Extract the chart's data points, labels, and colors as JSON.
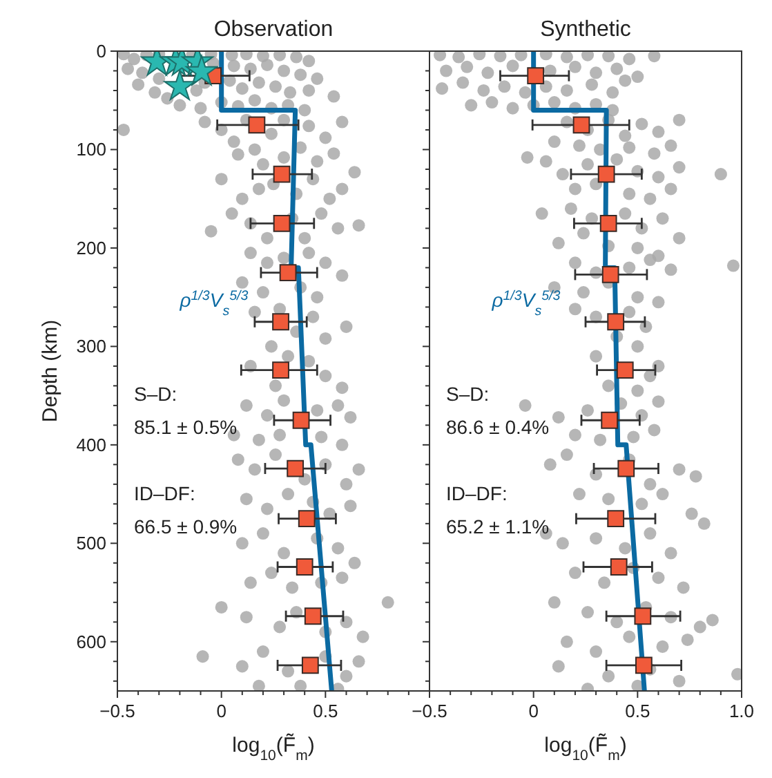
{
  "chart_data": [
    {
      "type": "scatter",
      "title": "Observation",
      "xlabel": "log$_{10}$(F̃$_{m}$)",
      "ylabel": "Depth (km)",
      "xlim": [
        -0.5,
        1.0
      ],
      "ylim": [
        650,
        0
      ],
      "xticks": [
        -0.5,
        {
          "value": -0.4,
          "label": null
        },
        {
          "value": -0.3,
          "label": null
        },
        {
          "value": -0.2,
          "label": null
        },
        {
          "value": -0.1,
          "label": null
        },
        0,
        {
          "value": 0.1,
          "label": null
        },
        {
          "value": 0.2,
          "label": null
        },
        {
          "value": 0.3,
          "label": null
        },
        {
          "value": 0.4,
          "label": null
        },
        0.5,
        {
          "value": 0.6,
          "label": null
        },
        {
          "value": 0.7,
          "label": null
        },
        {
          "value": 0.8,
          "label": null
        },
        {
          "value": 0.9,
          "label": null
        },
        {
          "value": 1.0,
          "label": null
        }
      ],
      "yticks": [
        0,
        {
          "value": 20,
          "label": null
        },
        {
          "value": 40,
          "label": null
        },
        {
          "value": 60,
          "label": null
        },
        {
          "value": 80,
          "label": null
        },
        100,
        {
          "value": 120,
          "label": null
        },
        {
          "value": 140,
          "label": null
        },
        {
          "value": 160,
          "label": null
        },
        {
          "value": 180,
          "label": null
        },
        200,
        {
          "value": 220,
          "label": null
        },
        {
          "value": 240,
          "label": null
        },
        {
          "value": 260,
          "label": null
        },
        {
          "value": 280,
          "label": null
        },
        300,
        {
          "value": 320,
          "label": null
        },
        {
          "value": 340,
          "label": null
        },
        {
          "value": 360,
          "label": null
        },
        {
          "value": 380,
          "label": null
        },
        400,
        {
          "value": 420,
          "label": null
        },
        {
          "value": 440,
          "label": null
        },
        {
          "value": 460,
          "label": null
        },
        {
          "value": 480,
          "label": null
        },
        500,
        {
          "value": 520,
          "label": null
        },
        {
          "value": 540,
          "label": null
        },
        {
          "value": 560,
          "label": null
        },
        {
          "value": 580,
          "label": null
        },
        600,
        {
          "value": 620,
          "label": null
        },
        {
          "value": 640,
          "label": null
        }
      ],
      "annotations": [
        "ρ$^{1/3}$V$_{s}$$^{5/3}$",
        "S–D:\n85.1 ± 0.5%",
        "ID–DF:\n66.5 ± 0.9%"
      ],
      "series": [
        {
          "marker": "circle",
          "color": "#a9a9a9",
          "x": [
            -0.47,
            -0.42,
            -0.36,
            -0.3,
            -0.14,
            -0.05,
            0.05,
            0.12,
            0.2,
            0.28,
            0.36,
            0.42,
            -0.45,
            -0.38,
            -0.3,
            -0.04,
            0.06,
            0.14,
            0.22,
            0.3,
            0.38,
            0.46,
            -0.4,
            -0.32,
            -0.26,
            -0.12,
            -0.08,
            0.04,
            0.1,
            0.18,
            0.26,
            0.33,
            0.42,
            0.54,
            -0.2,
            -0.1,
            0.0,
            0.08,
            0.16,
            0.24,
            0.32,
            0.4,
            -0.47,
            -0.08,
            0.0,
            0.06,
            0.12,
            0.24,
            0.3,
            0.42,
            0.5,
            0.58,
            0.08,
            0.16,
            0.2,
            0.3,
            0.38,
            0.46,
            0.54,
            0.64,
            0.0,
            0.1,
            0.18,
            0.25,
            0.36,
            0.44,
            0.52,
            0.58,
            -0.05,
            0.05,
            0.14,
            0.22,
            0.34,
            0.4,
            0.48,
            0.56,
            0.66,
            0.14,
            0.22,
            0.3,
            0.42,
            0.5,
            0.58,
            0.1,
            0.2,
            0.38,
            0.46,
            0.16,
            0.28,
            0.36,
            0.44,
            0.5,
            0.6,
            0.24,
            0.32,
            0.42,
            0.5,
            0.58,
            0.14,
            0.26,
            0.12,
            0.22,
            0.3,
            0.46,
            0.56,
            0.62,
            0.06,
            0.18,
            0.28,
            0.48,
            0.58,
            0.08,
            0.16,
            0.26,
            0.4,
            0.5,
            0.6,
            0.66,
            0.12,
            0.22,
            0.32,
            0.44,
            0.52,
            0.62,
            0.1,
            0.2,
            0.3,
            0.46,
            0.56,
            0.64,
            0.14,
            0.24,
            0.34,
            0.48,
            0.58,
            0.8,
            0.0,
            0.12,
            0.28,
            0.36,
            0.5,
            0.6,
            0.68,
            -0.09,
            0.1,
            0.2,
            0.32,
            0.5,
            0.6,
            0.66,
            0.18,
            0.38,
            0.56
          ],
          "values": [
            3,
            8,
            4,
            3,
            4,
            3,
            4,
            3,
            5,
            4,
            6,
            10,
            18,
            22,
            28,
            12,
            15,
            18,
            14,
            20,
            24,
            28,
            34,
            42,
            48,
            40,
            32,
            30,
            38,
            32,
            36,
            42,
            40,
            46,
            55,
            58,
            52,
            56,
            50,
            58,
            55,
            60,
            80,
            72,
            80,
            92,
            70,
            84,
            70,
            76,
            88,
            72,
            105,
            100,
            115,
            108,
            98,
            112,
            104,
            123,
            130,
            150,
            140,
            135,
            145,
            130,
            150,
            140,
            183,
            165,
            175,
            190,
            170,
            190,
            165,
            180,
            177,
            205,
            215,
            210,
            205,
            215,
            228,
            235,
            245,
            240,
            250,
            265,
            262,
            285,
            270,
            292,
            280,
            300,
            310,
            315,
            330,
            342,
            320,
            340,
            360,
            370,
            355,
            365,
            360,
            372,
            390,
            395,
            390,
            392,
            400,
            415,
            425,
            410,
            435,
            420,
            440,
            425,
            455,
            465,
            450,
            458,
            470,
            462,
            500,
            490,
            510,
            495,
            505,
            520,
            540,
            530,
            545,
            540,
            535,
            560,
            565,
            575,
            585,
            570,
            590,
            580,
            595,
            615,
            625,
            610,
            630,
            615,
            635,
            620,
            645,
            645,
            648
          ]
        },
        {
          "type": "line",
          "color": "#0b6aa2",
          "x": [
            0,
            0,
            0.355,
            0.335,
            0.37,
            0.405,
            0.43,
            0.53
          ],
          "values": [
            0,
            60,
            60,
            220,
            220,
            400,
            400,
            650
          ]
        },
        {
          "marker": "square",
          "color": "#f05a3a",
          "x": [
            -0.04,
            0.17,
            0.29,
            0.29,
            0.32,
            0.285,
            0.285,
            0.383,
            0.355,
            0.41,
            0.4,
            0.44,
            0.427
          ],
          "values": [
            25,
            75,
            125,
            175,
            225,
            275,
            324,
            375,
            424,
            475,
            524,
            574,
            624
          ],
          "xerrors": [
            [
              -0.2,
              0.135
            ],
            [
              -0.02,
              0.37
            ],
            [
              0.15,
              0.435
            ],
            [
              0.14,
              0.445
            ],
            [
              0.19,
              0.46
            ],
            [
              0.16,
              0.41
            ],
            [
              0.095,
              0.46
            ],
            [
              0.253,
              0.524
            ],
            [
              0.21,
              0.5
            ],
            [
              0.275,
              0.55
            ],
            [
              0.27,
              0.535
            ],
            [
              0.31,
              0.585
            ],
            [
              0.27,
              0.575
            ]
          ]
        },
        {
          "marker": "star",
          "color": "#2ab8b0",
          "x": [
            -0.31,
            -0.22,
            -0.19,
            -0.115,
            -0.095,
            -0.2
          ],
          "values": [
            11,
            11,
            11,
            11,
            21,
            36
          ]
        }
      ]
    },
    {
      "type": "scatter",
      "title": "Synthetic",
      "xlabel": "log$_{10}$(F̃$_{m}$)",
      "xlim": [
        -0.5,
        1.0
      ],
      "ylim": [
        650,
        0
      ],
      "tick_labels": "x",
      "xticks": [
        -0.5,
        {
          "value": -0.4,
          "label": null
        },
        {
          "value": -0.3,
          "label": null
        },
        {
          "value": -0.2,
          "label": null
        },
        {
          "value": -0.1,
          "label": null
        },
        0,
        {
          "value": 0.1,
          "label": null
        },
        {
          "value": 0.2,
          "label": null
        },
        {
          "value": 0.3,
          "label": null
        },
        {
          "value": 0.4,
          "label": null
        },
        0.5,
        {
          "value": 0.6,
          "label": null
        },
        {
          "value": 0.7,
          "label": null
        },
        {
          "value": 0.8,
          "label": null
        },
        {
          "value": 0.9,
          "label": null
        },
        {
          "value": 1.0,
          "label": "1.0"
        }
      ],
      "yticks": [
        0,
        {
          "value": 20,
          "label": null
        },
        {
          "value": 40,
          "label": null
        },
        {
          "value": 60,
          "label": null
        },
        {
          "value": 80,
          "label": null
        },
        100,
        {
          "value": 120,
          "label": null
        },
        {
          "value": 140,
          "label": null
        },
        {
          "value": 160,
          "label": null
        },
        {
          "value": 180,
          "label": null
        },
        200,
        {
          "value": 220,
          "label": null
        },
        {
          "value": 240,
          "label": null
        },
        {
          "value": 260,
          "label": null
        },
        {
          "value": 280,
          "label": null
        },
        300,
        {
          "value": 320,
          "label": null
        },
        {
          "value": 340,
          "label": null
        },
        {
          "value": 360,
          "label": null
        },
        {
          "value": 380,
          "label": null
        },
        400,
        {
          "value": 420,
          "label": null
        },
        {
          "value": 440,
          "label": null
        },
        {
          "value": 460,
          "label": null
        },
        {
          "value": 480,
          "label": null
        },
        500,
        {
          "value": 520,
          "label": null
        },
        {
          "value": 540,
          "label": null
        },
        {
          "value": 560,
          "label": null
        },
        {
          "value": 580,
          "label": null
        },
        600,
        {
          "value": 620,
          "label": null
        },
        {
          "value": 640,
          "label": null
        }
      ],
      "annotations": [
        "ρ$^{1/3}$V$_{s}$$^{5/3}$",
        "S–D:\n86.6 ± 0.4%",
        "ID–DF:\n65.2 ± 1.1%"
      ],
      "series": [
        {
          "marker": "circle",
          "color": "#a9a9a9",
          "x": [
            -0.45,
            -0.36,
            -0.26,
            -0.16,
            -0.06,
            0.06,
            0.16,
            0.26,
            0.36,
            0.46,
            0.58,
            -0.42,
            -0.32,
            -0.22,
            -0.1,
            0.08,
            0.2,
            0.3,
            0.4,
            0.5,
            -0.44,
            -0.34,
            -0.24,
            -0.14,
            -0.04,
            0.06,
            0.16,
            0.28,
            0.38,
            0.44,
            -0.3,
            -0.2,
            -0.1,
            0.0,
            0.1,
            0.2,
            0.3,
            0.38,
            0.16,
            0.26,
            0.36,
            0.44,
            0.52,
            0.6,
            0.7,
            0.1,
            0.22,
            0.32,
            0.46,
            0.58,
            0.66,
            -0.03,
            0.06,
            0.14,
            0.26,
            0.4,
            0.5,
            0.6,
            0.7,
            0.9,
            0.2,
            0.3,
            0.46,
            0.56,
            0.66,
            0.04,
            0.18,
            0.28,
            0.44,
            0.52,
            0.62,
            0.7,
            0.12,
            0.24,
            0.36,
            0.5,
            0.6,
            0.2,
            0.3,
            0.46,
            0.56,
            0.66,
            0.96,
            0.1,
            0.24,
            0.36,
            0.5,
            0.6,
            0.2,
            0.3,
            0.46,
            0.54,
            0.4,
            0.5,
            0.3,
            0.6,
            0.56,
            0.36,
            0.5,
            -0.04,
            0.12,
            0.26,
            0.42,
            0.52,
            0.6,
            0.2,
            0.32,
            0.48,
            0.58,
            0.08,
            0.16,
            0.3,
            0.46,
            0.56,
            0.7,
            0.78,
            0.22,
            0.36,
            0.52,
            0.62,
            0.76,
            0.06,
            0.14,
            0.3,
            0.44,
            0.56,
            0.66,
            0.82,
            0.2,
            0.34,
            0.48,
            0.6,
            0.72,
            0.1,
            0.26,
            0.4,
            0.54,
            0.66,
            0.8,
            0.86,
            0.16,
            0.3,
            0.46,
            0.62,
            0.74,
            0.12,
            0.36,
            0.56,
            0.7,
            0.98,
            0.26,
            0.5
          ],
          "values": [
            4,
            6,
            3,
            5,
            4,
            3,
            6,
            4,
            5,
            8,
            5,
            20,
            16,
            22,
            15,
            20,
            16,
            22,
            18,
            26,
            38,
            32,
            40,
            36,
            42,
            36,
            40,
            34,
            42,
            30,
            55,
            52,
            58,
            55,
            52,
            58,
            54,
            60,
            72,
            80,
            70,
            86,
            74,
            82,
            70,
            92,
            96,
            100,
            98,
            104,
            96,
            108,
            112,
            125,
            115,
            110,
            122,
            128,
            118,
            125,
            140,
            135,
            145,
            150,
            140,
            165,
            160,
            170,
            165,
            180,
            170,
            190,
            195,
            185,
            198,
            200,
            208,
            215,
            225,
            220,
            212,
            222,
            218,
            240,
            245,
            235,
            250,
            255,
            262,
            270,
            265,
            280,
            290,
            300,
            310,
            320,
            330,
            340,
            345,
            360,
            372,
            365,
            358,
            370,
            356,
            390,
            395,
            392,
            385,
            420,
            410,
            430,
            415,
            440,
            425,
            432,
            450,
            455,
            460,
            450,
            470,
            490,
            500,
            495,
            505,
            490,
            510,
            480,
            530,
            540,
            525,
            535,
            545,
            560,
            570,
            580,
            565,
            575,
            585,
            578,
            600,
            610,
            595,
            605,
            598,
            625,
            635,
            628,
            640,
            633,
            648,
            645
          ]
        },
        {
          "type": "line",
          "color": "#0b6aa2",
          "x": [
            0,
            0,
            0.35,
            0.345,
            0.39,
            0.405,
            0.445,
            0.533
          ],
          "values": [
            0,
            60,
            60,
            220,
            220,
            400,
            400,
            650
          ]
        },
        {
          "marker": "square",
          "color": "#f05a3a",
          "x": [
            0.01,
            0.23,
            0.35,
            0.36,
            0.37,
            0.395,
            0.44,
            0.365,
            0.445,
            0.395,
            0.41,
            0.525,
            0.53
          ],
          "values": [
            25,
            75,
            125,
            175,
            227,
            275,
            324,
            375,
            424,
            475,
            524,
            574,
            624
          ],
          "xerrors": [
            [
              -0.16,
              0.17
            ],
            [
              -0.005,
              0.46
            ],
            [
              0.18,
              0.52
            ],
            [
              0.195,
              0.52
            ],
            [
              0.2,
              0.545
            ],
            [
              0.25,
              0.535
            ],
            [
              0.305,
              0.585
            ],
            [
              0.23,
              0.51
            ],
            [
              0.29,
              0.6
            ],
            [
              0.205,
              0.585
            ],
            [
              0.24,
              0.57
            ],
            [
              0.35,
              0.705
            ],
            [
              0.35,
              0.71
            ]
          ]
        }
      ]
    }
  ]
}
